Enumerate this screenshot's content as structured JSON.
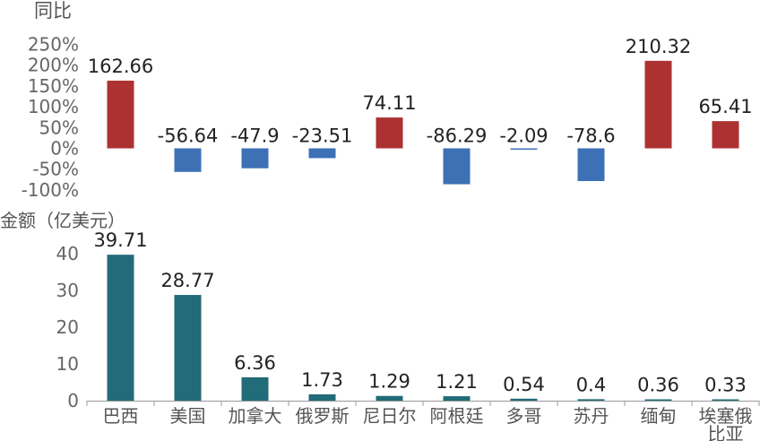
{
  "chart_data": [
    {
      "type": "bar",
      "ylabel": "同比",
      "yticks": [
        "250%",
        "200%",
        "150%",
        "100%",
        "50%",
        "0%",
        "-50%",
        "-100%"
      ],
      "ylim": [
        -100,
        250
      ],
      "categories": [
        "巴西",
        "美国",
        "加拿大",
        "俄罗斯",
        "尼日尔",
        "阿根廷",
        "多哥",
        "苏丹",
        "缅甸",
        "埃塞俄比亚"
      ],
      "values": [
        162.66,
        -56.64,
        -47.9,
        -23.51,
        74.11,
        -86.29,
        -2.09,
        -78.6,
        210.32,
        65.41
      ],
      "data_labels": [
        "162.66",
        "-56.64",
        "-47.9",
        "-23.51",
        "74.11",
        "-86.29",
        "-2.09",
        "-78.6",
        "210.32",
        "65.41"
      ],
      "colors": {
        "positive": "#ac3232",
        "negative": "#3e70b6"
      },
      "grid": false
    },
    {
      "type": "bar",
      "ylabel": "金额（亿美元）",
      "yticks": [
        "40",
        "30",
        "20",
        "10",
        "0"
      ],
      "ylim": [
        0,
        40
      ],
      "categories": [
        "巴西",
        "美国",
        "加拿大",
        "俄罗斯",
        "尼日尔",
        "阿根廷",
        "多哥",
        "苏丹",
        "缅甸",
        "埃塞俄比亚"
      ],
      "category_labels": [
        "巴西",
        "美国",
        "加拿大",
        "俄罗斯",
        "尼日尔",
        "阿根廷",
        "多哥",
        "苏丹",
        "缅甸",
        "埃塞俄\n比亚"
      ],
      "values": [
        39.71,
        28.77,
        6.36,
        1.73,
        1.29,
        1.21,
        0.54,
        0.4,
        0.36,
        0.33
      ],
      "data_labels": [
        "39.71",
        "28.77",
        "6.36",
        "1.73",
        "1.29",
        "1.21",
        "0.54",
        "0.4",
        "0.36",
        "0.33"
      ],
      "colors": {
        "bar": "#226b78"
      },
      "grid": false
    }
  ]
}
